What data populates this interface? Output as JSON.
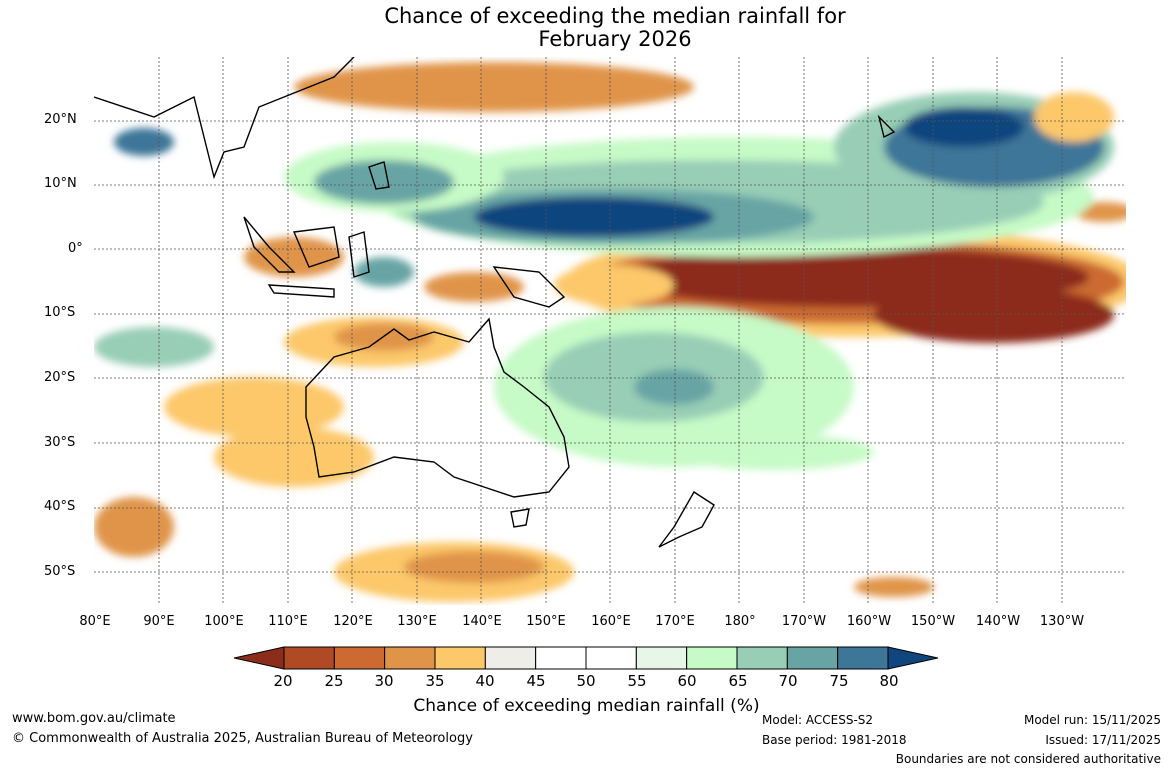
{
  "title": {
    "line1": "Chance of exceeding the median rainfall for",
    "line2": "February 2026"
  },
  "map": {
    "lat_labels": [
      "20°N",
      "10°N",
      "0°",
      "10°S",
      "20°S",
      "30°S",
      "40°S",
      "50°S"
    ],
    "lon_labels": [
      "80°E",
      "90°E",
      "100°E",
      "110°E",
      "120°E",
      "130°E",
      "140°E",
      "150°E",
      "160°E",
      "170°E",
      "180°",
      "170°W",
      "160°W",
      "150°W",
      "140°W",
      "130°W"
    ]
  },
  "colorbar": {
    "ticks": [
      "20",
      "25",
      "30",
      "35",
      "40",
      "45",
      "50",
      "55",
      "60",
      "65",
      "70",
      "75",
      "80"
    ],
    "colors": [
      "#8c2c1b",
      "#b04a24",
      "#cc6a31",
      "#e0944a",
      "#fcc86a",
      "#efede8",
      "#ffffff",
      "#ffffff",
      "#e8f6e8",
      "#c6fac6",
      "#98ceb6",
      "#68a4a4",
      "#3e7698",
      "#11457e"
    ],
    "label": "Chance of exceeding median rainfall (%)"
  },
  "footer": {
    "website": "www.bom.gov.au/climate",
    "copyright": "© Commonwealth of Australia 2025, Australian Bureau of Meteorology",
    "model": "Model: ACCESS-S2",
    "base_period": "Base period: 1981-2018",
    "model_run": "Model run: 15/11/2025",
    "issued": "Issued: 17/11/2025",
    "disclaimer": "Boundaries are not considered authoritative"
  }
}
